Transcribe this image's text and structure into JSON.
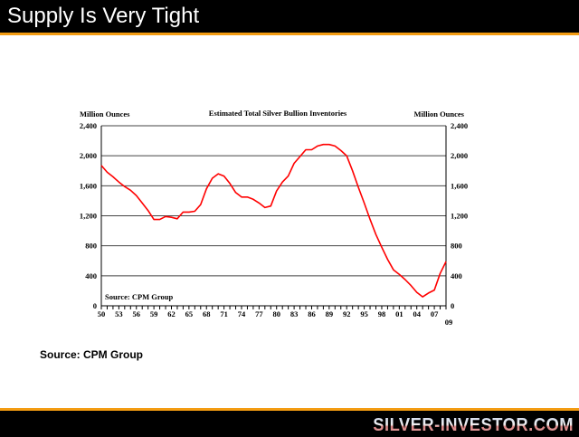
{
  "slide_title": "Supply Is Very Tight",
  "source_note": "Source: CPM Group",
  "brand": "SILVER-INVESTOR.COM",
  "chart_data": {
    "type": "line",
    "title": "Estimated Total Silver Bullion Inventories",
    "ylabel_left": "Million Ounces",
    "ylabel_right": "Million Ounces",
    "inner_source": "Source: CPM Group",
    "ylim": [
      0,
      2400
    ],
    "xlim": [
      1950,
      2009
    ],
    "yticks": [
      0,
      400,
      800,
      1200,
      1600,
      2000,
      2400
    ],
    "ytick_labels": [
      "0",
      "400",
      "800",
      "1,200",
      "1,600",
      "2,000",
      "2,400"
    ],
    "xtick_years": [
      1950,
      1953,
      1956,
      1959,
      1962,
      1965,
      1968,
      1971,
      1974,
      1977,
      1980,
      1983,
      1986,
      1989,
      1992,
      1995,
      1998,
      2001,
      2004,
      2007,
      2009
    ],
    "xtick_labels": [
      "50",
      "53",
      "56",
      "59",
      "62",
      "65",
      "68",
      "71",
      "74",
      "77",
      "80",
      "83",
      "86",
      "89",
      "92",
      "95",
      "98",
      "01",
      "04",
      "07",
      "09"
    ],
    "grid": true,
    "color": "#ff0000",
    "x": [
      1950,
      1951,
      1952,
      1953,
      1954,
      1955,
      1956,
      1957,
      1958,
      1959,
      1960,
      1961,
      1962,
      1963,
      1964,
      1965,
      1966,
      1967,
      1968,
      1969,
      1970,
      1971,
      1972,
      1973,
      1974,
      1975,
      1976,
      1977,
      1978,
      1979,
      1980,
      1981,
      1982,
      1983,
      1984,
      1985,
      1986,
      1987,
      1988,
      1989,
      1990,
      1991,
      1992,
      1993,
      1994,
      1995,
      1996,
      1997,
      1998,
      1999,
      2000,
      2001,
      2002,
      2003,
      2004,
      2005,
      2006,
      2007,
      2008,
      2009
    ],
    "values": [
      1870,
      1780,
      1720,
      1650,
      1590,
      1540,
      1470,
      1370,
      1270,
      1150,
      1150,
      1190,
      1180,
      1160,
      1250,
      1250,
      1260,
      1350,
      1560,
      1700,
      1760,
      1730,
      1630,
      1510,
      1450,
      1450,
      1420,
      1370,
      1310,
      1330,
      1530,
      1650,
      1730,
      1900,
      1990,
      2080,
      2080,
      2130,
      2150,
      2150,
      2130,
      2070,
      2000,
      1800,
      1580,
      1370,
      1150,
      950,
      780,
      620,
      480,
      420,
      350,
      270,
      180,
      120,
      170,
      210,
      430,
      590
    ]
  }
}
